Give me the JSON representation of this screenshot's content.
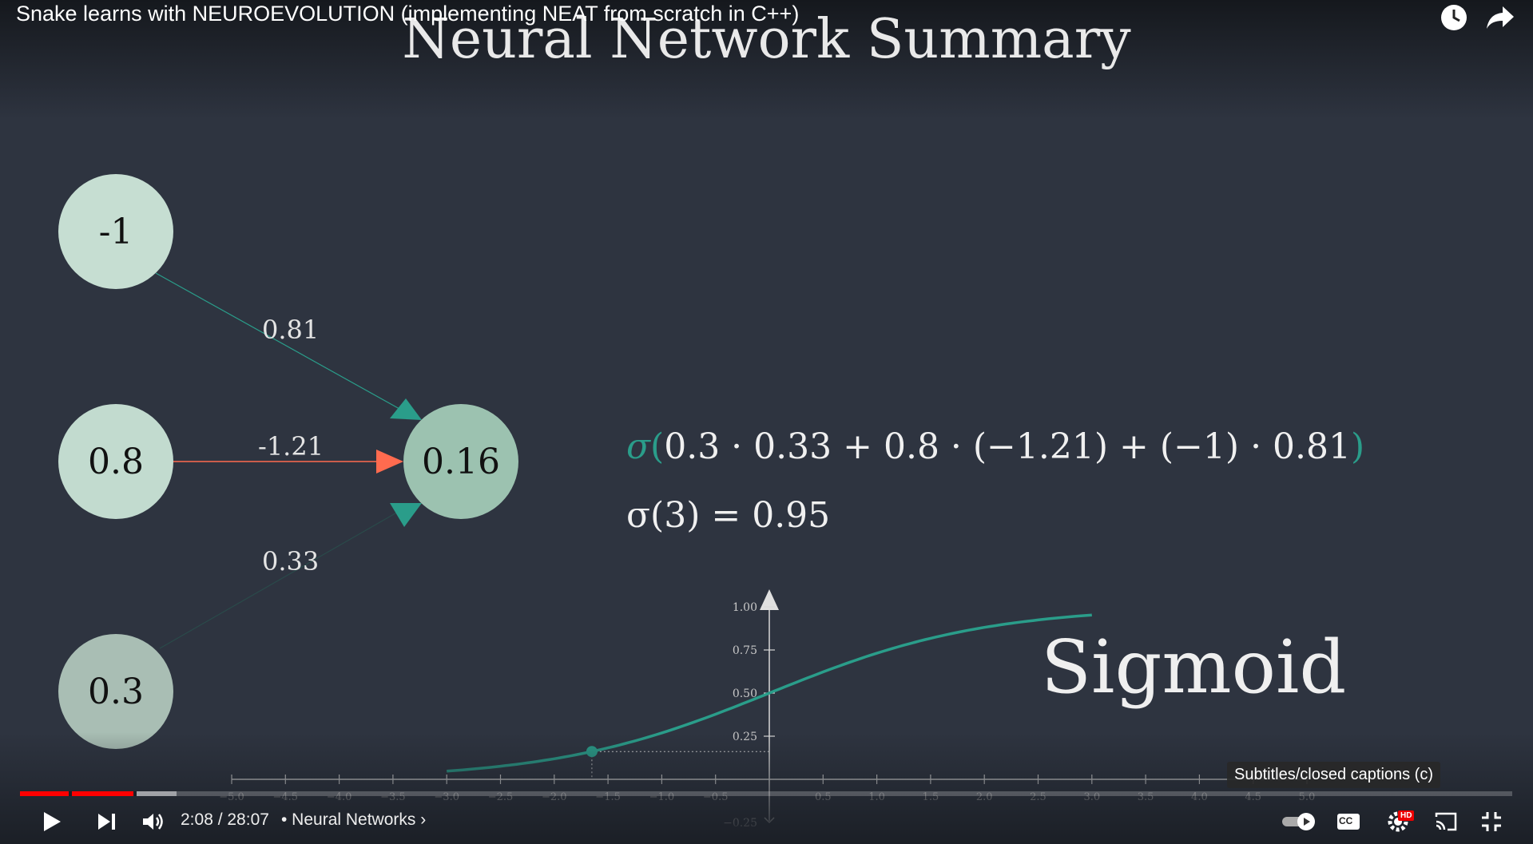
{
  "player": {
    "video_title": "Snake learns with NEUROEVOLUTION (implementing NEAT from scratch in C++)",
    "top_icons": [
      "clock-icon",
      "share-icon"
    ],
    "time_current": "2:08",
    "time_total": "28:07",
    "time_display": "2:08 / 28:07",
    "chapter": "• Neural Networks ›",
    "progress_fraction": 0.076,
    "buffer_fraction": 0.105,
    "tooltip": "Subtitles/closed captions (c)",
    "controls": [
      "play-icon",
      "next-icon",
      "volume-icon",
      "autoplay-toggle",
      "captions-icon",
      "settings-icon",
      "cast-icon",
      "exit-fullscreen-icon"
    ],
    "settings_badge": "HD",
    "captions_label": "CC"
  },
  "slide": {
    "title": "Neural Network Summary",
    "inputs": [
      {
        "value": "-1",
        "weight": "0.81"
      },
      {
        "value": "0.8",
        "weight": "-1.21"
      },
      {
        "value": "0.3",
        "weight": "0.33"
      }
    ],
    "output": "0.16",
    "formula_line1": "0.3 · 0.33 + 0.8 · (−1.21) + (−1) · 0.81",
    "formula_sigma": "σ",
    "formula_open": "(",
    "formula_close": ")",
    "formula_line2": "σ(3) = 0.95",
    "sigmoid_label": "Sigmoid",
    "colors": {
      "background": "#2e3440",
      "accent_teal": "#2a9d8a",
      "negative_red": "#ff6b4f",
      "node_fill": "#c9dfd3",
      "output_node_fill": "#9cc2b0"
    }
  },
  "chart_data": {
    "type": "line",
    "function": "sigmoid",
    "x": [
      -3.0,
      -2.5,
      -2.0,
      -1.5,
      -1.0,
      -0.5,
      0.0,
      0.5,
      1.0,
      1.5,
      2.0,
      2.5,
      3.0
    ],
    "y": [
      0.047,
      0.076,
      0.119,
      0.182,
      0.269,
      0.378,
      0.5,
      0.622,
      0.731,
      0.818,
      0.881,
      0.924,
      0.953
    ],
    "xlim": [
      -5.0,
      5.0
    ],
    "ylim": [
      -0.25,
      1.0
    ],
    "x_ticks": [
      "−5.0",
      "−4.5",
      "−4.0",
      "−3.5",
      "−3.0",
      "−2.5",
      "−2.0",
      "−1.5",
      "−1.0",
      "−0.5",
      "0.5",
      "1.0",
      "1.5",
      "2.0",
      "2.5",
      "3.0",
      "3.5",
      "4.0",
      "4.5",
      "5.0"
    ],
    "x_tick_values": [
      -5.0,
      -4.5,
      -4.0,
      -3.5,
      -3.0,
      -2.5,
      -2.0,
      -1.5,
      -1.0,
      -0.5,
      0.5,
      1.0,
      1.5,
      2.0,
      2.5,
      3.0,
      3.5,
      4.0,
      4.5,
      5.0
    ],
    "y_ticks": [
      "1.00",
      "0.75",
      "0.50",
      "0.25",
      "−0.25"
    ],
    "y_tick_values": [
      1.0,
      0.75,
      0.5,
      0.25,
      -0.25
    ],
    "highlight_point": {
      "x": -1.65,
      "y": 0.161
    },
    "grid": false
  }
}
